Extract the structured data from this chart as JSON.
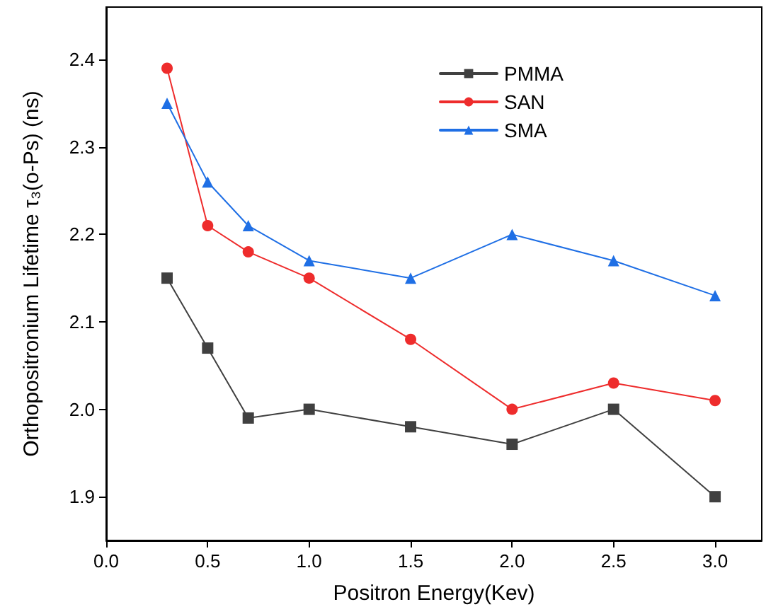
{
  "chart_data": {
    "type": "line",
    "xlabel": "Positron Energy(Kev)",
    "ylabel": "Orthopositronium Lifetime τ₃(o-Ps) (ns)",
    "x": [
      0.3,
      0.5,
      0.7,
      1.0,
      1.5,
      2.0,
      2.5,
      3.0
    ],
    "series": [
      {
        "name": "PMMA",
        "color": "#404040",
        "marker": "square",
        "values": [
          2.15,
          2.07,
          1.99,
          2.0,
          1.98,
          1.96,
          2.0,
          1.9
        ]
      },
      {
        "name": "SAN",
        "color": "#ee2c2c",
        "marker": "circle",
        "values": [
          2.39,
          2.21,
          2.18,
          2.15,
          2.08,
          2.0,
          2.03,
          2.01
        ]
      },
      {
        "name": "SMA",
        "color": "#1f6fe5",
        "marker": "triangle",
        "values": [
          2.35,
          2.26,
          2.21,
          2.17,
          2.15,
          2.2,
          2.17,
          2.13
        ]
      }
    ],
    "xlim": [
      0,
      3.23
    ],
    "xticks": [
      {
        "value": 0,
        "label": "0.0"
      },
      0.5,
      {
        "value": 1,
        "label": "1.0"
      },
      1.5,
      {
        "value": 2,
        "label": "2.0"
      },
      2.5,
      {
        "value": 3,
        "label": "3.0"
      }
    ],
    "ylim": [
      1.85,
      2.46
    ],
    "yticks": [
      1.9,
      {
        "value": 2,
        "label": "2.0"
      },
      2.1,
      2.2,
      2.3,
      2.4
    ],
    "legend": "top right",
    "line_style": "solid"
  }
}
